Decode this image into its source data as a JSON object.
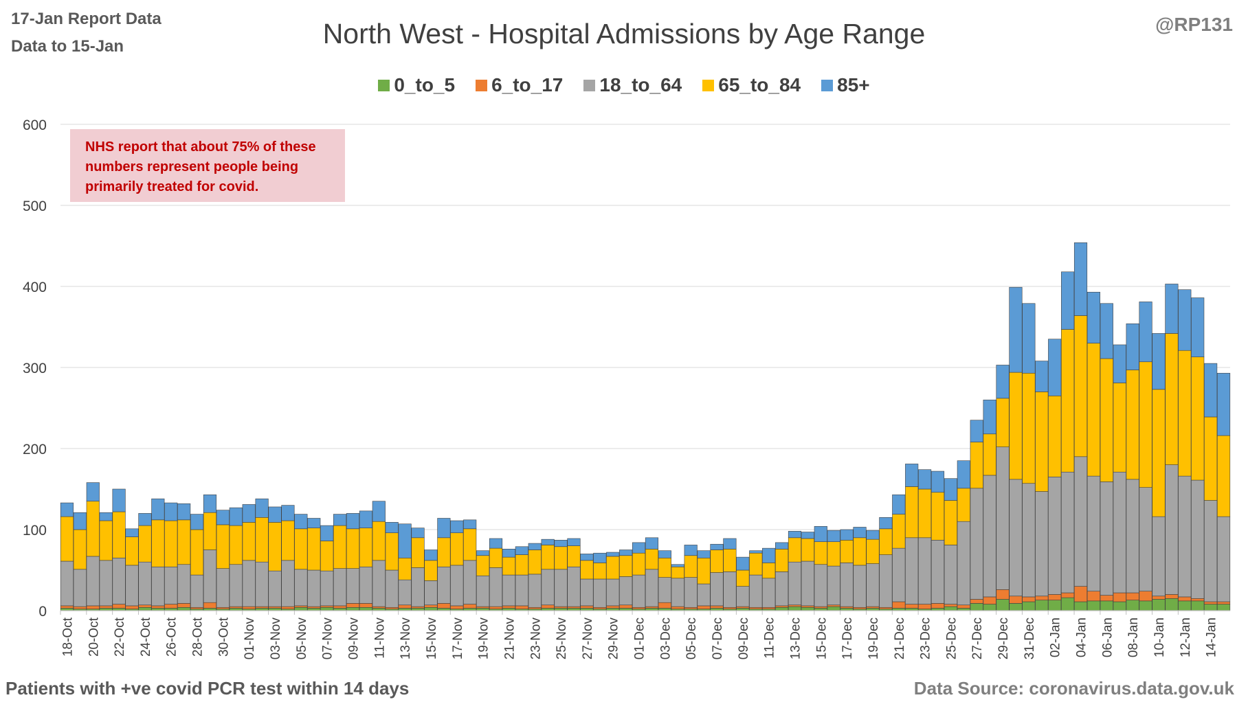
{
  "header": {
    "report_date": "17-Jan Report Data",
    "data_to": "Data to 15-Jan",
    "handle": "@RP131"
  },
  "footer": {
    "left": "Patients with  +ve covid PCR test within 14 days",
    "right": "Data Source: coronavirus.data.gov.uk"
  },
  "annotation": {
    "line1": "NHS report that about 75% of these",
    "line2": "numbers represent people being",
    "line3": "primarily treated for covid."
  },
  "chart_data": {
    "type": "bar",
    "stacked": true,
    "title": "North West - Hospital Admissions by Age Range",
    "xlabel": "",
    "ylabel": "",
    "ylim": [
      0,
      600
    ],
    "yticks": [
      0,
      100,
      200,
      300,
      400,
      500,
      600
    ],
    "grid": true,
    "legend_position": "top",
    "tick_labels": [
      "18-Oct",
      "20-Oct",
      "22-Oct",
      "24-Oct",
      "26-Oct",
      "28-Oct",
      "30-Oct",
      "01-Nov",
      "03-Nov",
      "05-Nov",
      "07-Nov",
      "09-Nov",
      "11-Nov",
      "13-Nov",
      "15-Nov",
      "17-Nov",
      "19-Nov",
      "21-Nov",
      "23-Nov",
      "25-Nov",
      "27-Nov",
      "29-Nov",
      "01-Dec",
      "03-Dec",
      "05-Dec",
      "07-Dec",
      "09-Dec",
      "11-Dec",
      "13-Dec",
      "15-Dec",
      "17-Dec",
      "19-Dec",
      "21-Dec",
      "23-Dec",
      "25-Dec",
      "27-Dec",
      "29-Dec",
      "31-Dec",
      "02-Jan",
      "04-Jan",
      "06-Jan",
      "08-Jan",
      "10-Jan",
      "12-Jan",
      "14-Jan"
    ],
    "categories": [
      "18-Oct",
      "19-Oct",
      "20-Oct",
      "21-Oct",
      "22-Oct",
      "23-Oct",
      "24-Oct",
      "25-Oct",
      "26-Oct",
      "27-Oct",
      "28-Oct",
      "29-Oct",
      "30-Oct",
      "31-Oct",
      "01-Nov",
      "02-Nov",
      "03-Nov",
      "04-Nov",
      "05-Nov",
      "06-Nov",
      "07-Nov",
      "08-Nov",
      "09-Nov",
      "10-Nov",
      "11-Nov",
      "12-Nov",
      "13-Nov",
      "14-Nov",
      "15-Nov",
      "16-Nov",
      "17-Nov",
      "18-Nov",
      "19-Nov",
      "20-Nov",
      "21-Nov",
      "22-Nov",
      "23-Nov",
      "24-Nov",
      "25-Nov",
      "26-Nov",
      "27-Nov",
      "28-Nov",
      "29-Nov",
      "30-Nov",
      "01-Dec",
      "02-Dec",
      "03-Dec",
      "04-Dec",
      "05-Dec",
      "06-Dec",
      "07-Dec",
      "08-Dec",
      "09-Dec",
      "10-Dec",
      "11-Dec",
      "12-Dec",
      "13-Dec",
      "14-Dec",
      "15-Dec",
      "16-Dec",
      "17-Dec",
      "18-Dec",
      "19-Dec",
      "20-Dec",
      "21-Dec",
      "22-Dec",
      "23-Dec",
      "24-Dec",
      "25-Dec",
      "26-Dec",
      "27-Dec",
      "28-Dec",
      "29-Dec",
      "30-Dec",
      "31-Dec",
      "01-Jan",
      "02-Jan",
      "03-Jan",
      "04-Jan",
      "05-Jan",
      "06-Jan",
      "07-Jan",
      "08-Jan",
      "09-Jan",
      "10-Jan",
      "11-Jan",
      "12-Jan",
      "13-Jan",
      "14-Jan",
      "15-Jan"
    ],
    "series": [
      {
        "name": "0_to_5",
        "color": "#70ad47",
        "values": [
          3,
          2,
          2,
          3,
          3,
          2,
          4,
          3,
          3,
          4,
          2,
          3,
          2,
          3,
          2,
          3,
          3,
          2,
          4,
          3,
          4,
          3,
          4,
          4,
          3,
          2,
          3,
          3,
          4,
          3,
          2,
          3,
          3,
          2,
          3,
          2,
          2,
          3,
          3,
          3,
          3,
          2,
          3,
          3,
          2,
          3,
          3,
          2,
          2,
          2,
          3,
          2,
          3,
          2,
          2,
          4,
          5,
          4,
          3,
          5,
          3,
          2,
          3,
          2,
          3,
          3,
          2,
          3,
          5,
          3,
          9,
          8,
          14,
          9,
          11,
          13,
          13,
          16,
          11,
          12,
          12,
          11,
          13,
          12,
          14,
          15,
          12,
          12,
          8,
          8
        ]
      },
      {
        "name": "6_to_17",
        "color": "#ed7d31",
        "values": [
          3,
          3,
          4,
          3,
          5,
          4,
          3,
          3,
          5,
          5,
          2,
          7,
          2,
          2,
          3,
          2,
          2,
          3,
          2,
          2,
          2,
          3,
          5,
          5,
          2,
          2,
          4,
          2,
          3,
          6,
          4,
          5,
          2,
          3,
          3,
          4,
          2,
          4,
          2,
          2,
          3,
          2,
          3,
          4,
          2,
          2,
          7,
          3,
          2,
          4,
          3,
          2,
          2,
          2,
          2,
          2,
          2,
          2,
          2,
          2,
          2,
          2,
          2,
          2,
          8,
          5,
          6,
          6,
          3,
          4,
          5,
          9,
          12,
          9,
          6,
          5,
          7,
          6,
          19,
          12,
          7,
          11,
          9,
          12,
          4,
          5,
          5,
          3,
          3,
          3
        ]
      },
      {
        "name": "18_to_64",
        "color": "#a5a5a5",
        "values": [
          55,
          46,
          61,
          56,
          57,
          50,
          53,
          48,
          46,
          48,
          40,
          65,
          48,
          52,
          57,
          55,
          44,
          57,
          45,
          45,
          43,
          46,
          43,
          45,
          57,
          46,
          31,
          48,
          30,
          45,
          50,
          54,
          38,
          48,
          38,
          38,
          41,
          44,
          46,
          49,
          33,
          35,
          33,
          35,
          40,
          46,
          31,
          35,
          37,
          27,
          41,
          44,
          25,
          40,
          36,
          42,
          53,
          55,
          52,
          48,
          54,
          52,
          53,
          65,
          66,
          82,
          82,
          78,
          73,
          103,
          137,
          150,
          176,
          144,
          140,
          129,
          145,
          149,
          160,
          142,
          140,
          149,
          140,
          128,
          98,
          160,
          149,
          146,
          125,
          105
        ]
      },
      {
        "name": "65_to_84",
        "color": "#ffc000",
        "values": [
          55,
          49,
          68,
          49,
          57,
          35,
          45,
          58,
          57,
          55,
          56,
          46,
          54,
          48,
          47,
          55,
          60,
          49,
          50,
          52,
          37,
          53,
          49,
          48,
          48,
          46,
          27,
          37,
          25,
          36,
          40,
          39,
          25,
          24,
          22,
          25,
          30,
          30,
          28,
          26,
          23,
          20,
          28,
          26,
          27,
          25,
          24,
          14,
          27,
          32,
          28,
          28,
          20,
          27,
          19,
          28,
          30,
          28,
          28,
          30,
          28,
          34,
          30,
          32,
          42,
          63,
          60,
          59,
          55,
          41,
          57,
          51,
          60,
          132,
          136,
          123,
          100,
          176,
          174,
          164,
          152,
          110,
          135,
          155,
          157,
          162,
          155,
          152,
          103,
          100
        ]
      },
      {
        "name": "85+",
        "color": "#5b9bd5",
        "values": [
          17,
          21,
          23,
          10,
          28,
          10,
          15,
          26,
          22,
          20,
          19,
          22,
          18,
          22,
          22,
          23,
          19,
          19,
          18,
          12,
          19,
          14,
          19,
          21,
          25,
          13,
          42,
          12,
          13,
          24,
          15,
          11,
          6,
          12,
          10,
          10,
          8,
          7,
          8,
          9,
          8,
          12,
          5,
          7,
          13,
          14,
          9,
          3,
          13,
          9,
          7,
          13,
          16,
          3,
          18,
          8,
          8,
          8,
          19,
          14,
          13,
          13,
          11,
          14,
          24,
          28,
          24,
          26,
          27,
          34,
          27,
          42,
          41,
          105,
          86,
          38,
          70,
          71,
          90,
          63,
          68,
          47,
          57,
          74,
          69,
          61,
          75,
          73,
          66,
          77
        ]
      }
    ]
  }
}
